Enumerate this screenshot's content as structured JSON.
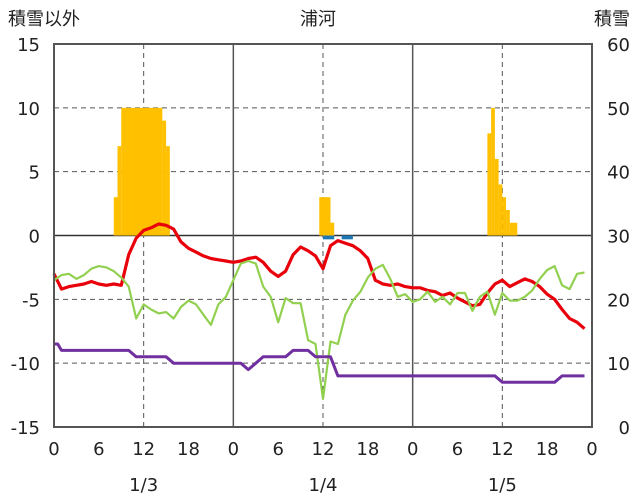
{
  "chart_data": {
    "type": "bar+line",
    "title": "浦河",
    "left_axis_title": "積雪以外",
    "right_axis_title": "積雪",
    "ylim_left": [
      -15,
      15
    ],
    "yticks_left": [
      15,
      10,
      5,
      0,
      -5,
      -10,
      -15
    ],
    "ylim_right": [
      0,
      60
    ],
    "yticks_right": [
      60,
      50,
      40,
      30,
      20,
      10,
      0
    ],
    "xlim_hours": [
      0,
      72
    ],
    "xtick_labels": [
      "0",
      "6",
      "12",
      "18",
      "0",
      "6",
      "12",
      "18",
      "0",
      "6",
      "12",
      "18",
      "0"
    ],
    "day_labels": [
      "1/3",
      "1/4",
      "1/5"
    ],
    "colors": {
      "snow_depth": "#FFC000",
      "precipitation": "#1F77B4",
      "temperature": "#E8000B",
      "dew_point": "#92D050",
      "wind": "#7030A0",
      "grid_dashed": "#555555",
      "day_divider": "#555555"
    },
    "bars": [
      {
        "name": "",
        "color": "snow_depth",
        "values": [
          [
            8.0,
            8.5,
            3
          ],
          [
            8.5,
            9.0,
            7
          ],
          [
            9.0,
            10.5,
            10
          ],
          [
            10.5,
            14.5,
            10
          ],
          [
            14.5,
            15.0,
            9
          ],
          [
            15.0,
            15.5,
            7
          ],
          [
            35.5,
            37.0,
            3
          ],
          [
            37.0,
            37.5,
            1
          ],
          [
            58.0,
            58.5,
            8
          ],
          [
            58.5,
            59.0,
            10
          ],
          [
            59.0,
            59.5,
            6
          ],
          [
            59.5,
            60.0,
            4
          ],
          [
            60.0,
            60.5,
            3
          ],
          [
            60.5,
            61.0,
            2
          ],
          [
            61.0,
            62.0,
            1
          ]
        ]
      },
      {
        "name": "",
        "color": "precipitation",
        "values": [
          [
            36.0,
            37.5,
            -0.3
          ],
          [
            38.5,
            40.0,
            -0.3
          ]
        ]
      }
    ],
    "series": [
      {
        "name": "",
        "color": "temperature",
        "x": [
          0,
          1,
          2,
          3,
          4,
          5,
          6,
          7,
          8,
          9,
          10,
          11,
          12,
          13,
          14,
          15,
          16,
          17,
          18,
          19,
          20,
          21,
          22,
          23,
          24,
          25,
          26,
          27,
          28,
          29,
          30,
          31,
          32,
          33,
          34,
          35,
          36,
          37,
          38,
          39,
          40,
          41,
          42,
          43,
          44,
          45,
          46,
          47,
          48,
          49,
          50,
          51,
          52,
          53,
          54,
          55,
          56,
          57,
          58,
          59,
          60,
          61,
          62,
          63,
          64,
          65,
          66,
          67,
          68,
          69,
          70,
          71
        ],
        "y": [
          -3,
          -4.2,
          -4,
          -3.9,
          -3.8,
          -3.6,
          -3.8,
          -3.9,
          -3.8,
          -3.9,
          -1.5,
          -0.2,
          0.4,
          0.6,
          0.9,
          0.8,
          0.5,
          -0.5,
          -1,
          -1.3,
          -1.6,
          -1.8,
          -1.9,
          -2,
          -2.1,
          -2,
          -1.8,
          -1.7,
          -2.1,
          -2.8,
          -3.2,
          -2.8,
          -1.5,
          -0.9,
          -1.2,
          -1.6,
          -2.6,
          -0.8,
          -0.4,
          -0.6,
          -0.8,
          -1.2,
          -1.8,
          -3.5,
          -3.8,
          -3.9,
          -3.8,
          -4,
          -4.1,
          -4.1,
          -4.3,
          -4.4,
          -4.7,
          -4.5,
          -4.9,
          -5.2,
          -5.5,
          -5.4,
          -4.5,
          -3.8,
          -3.5,
          -4,
          -3.7,
          -3.4,
          -3.6,
          -4,
          -4.6,
          -5,
          -5.8,
          -6.5,
          -6.8,
          -7.3
        ]
      },
      {
        "name": "",
        "color": "dew_point",
        "x": [
          0,
          1,
          2,
          3,
          4,
          5,
          6,
          7,
          8,
          9,
          10,
          11,
          12,
          13,
          14,
          15,
          16,
          17,
          18,
          19,
          20,
          21,
          22,
          23,
          24,
          25,
          26,
          27,
          28,
          29,
          30,
          31,
          32,
          33,
          34,
          35,
          36,
          37,
          38,
          39,
          40,
          41,
          42,
          43,
          44,
          45,
          46,
          47,
          48,
          49,
          50,
          51,
          52,
          53,
          54,
          55,
          56,
          57,
          58,
          59,
          60,
          61,
          62,
          63,
          64,
          65,
          66,
          67,
          68,
          69,
          70,
          71
        ],
        "y": [
          -3.5,
          -3.1,
          -3,
          -3.4,
          -3.1,
          -2.6,
          -2.4,
          -2.5,
          -2.8,
          -3.3,
          -4,
          -6.5,
          -5.4,
          -5.8,
          -6.1,
          -6,
          -6.5,
          -5.6,
          -5.1,
          -5.4,
          -6.2,
          -7,
          -5.4,
          -4.8,
          -3.5,
          -2.2,
          -2,
          -2.2,
          -4,
          -4.8,
          -6.8,
          -4.9,
          -5.3,
          -5.3,
          -8.2,
          -8.5,
          -12.8,
          -8.3,
          -8.5,
          -6.2,
          -5.1,
          -4.4,
          -3.3,
          -2.6,
          -2.3,
          -3.4,
          -4.8,
          -4.6,
          -5.2,
          -5,
          -4.4,
          -5.2,
          -4.8,
          -5.4,
          -4.5,
          -4.5,
          -5.9,
          -4.8,
          -4.4,
          -6.2,
          -4.5,
          -5.1,
          -5.1,
          -4.8,
          -4.3,
          -3.4,
          -2.7,
          -2.4,
          -3.9,
          -4.2,
          -3,
          -2.9
        ]
      },
      {
        "name": "",
        "color": "wind",
        "x": [
          0,
          0.5,
          1,
          2,
          3,
          4,
          5,
          6,
          7,
          8,
          9,
          10,
          11,
          12,
          13,
          14,
          15,
          16,
          17,
          18,
          19,
          20,
          21,
          22,
          23,
          24,
          25,
          26,
          27,
          28,
          29,
          30,
          31,
          32,
          33,
          34,
          35,
          36,
          37,
          38,
          39,
          40,
          41,
          42,
          43,
          44,
          45,
          46,
          47,
          48,
          49,
          50,
          51,
          52,
          53,
          54,
          55,
          56,
          57,
          58,
          59,
          60,
          61,
          62,
          63,
          64,
          65,
          66,
          67,
          68,
          69,
          70,
          71
        ],
        "y": [
          -8.5,
          -8.5,
          -9,
          -9,
          -9,
          -9,
          -9,
          -9,
          -9,
          -9,
          -9,
          -9,
          -9.5,
          -9.5,
          -9.5,
          -9.5,
          -9.5,
          -10,
          -10,
          -10,
          -10,
          -10,
          -10,
          -10,
          -10,
          -10,
          -10,
          -10.5,
          -10,
          -9.5,
          -9.5,
          -9.5,
          -9.5,
          -9,
          -9,
          -9,
          -9.5,
          -9.5,
          -9.5,
          -11,
          -11,
          -11,
          -11,
          -11,
          -11,
          -11,
          -11,
          -11,
          -11,
          -11,
          -11,
          -11,
          -11,
          -11,
          -11,
          -11,
          -11,
          -11,
          -11,
          -11,
          -11,
          -11.5,
          -11.5,
          -11.5,
          -11.5,
          -11.5,
          -11.5,
          -11.5,
          -11.5,
          -11,
          -11,
          -11,
          -11
        ]
      }
    ]
  }
}
